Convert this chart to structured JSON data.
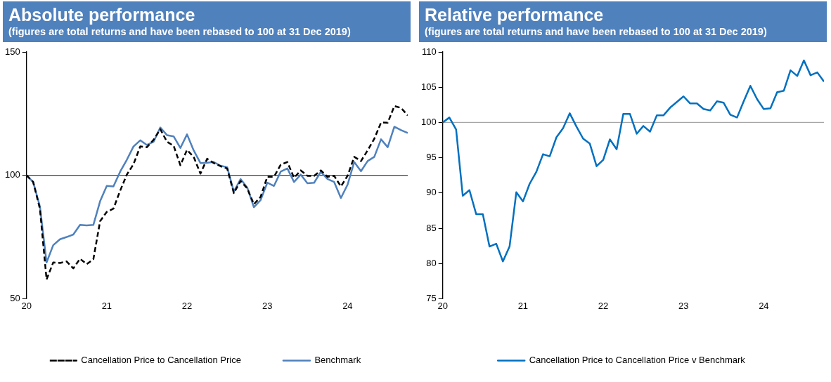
{
  "chart_data": [
    {
      "type": "line",
      "title": "Absolute performance",
      "subtitle": "(figures are total returns and have been rebased to 100 at 31 Dec 2019)",
      "x": [
        20,
        20.083,
        20.167,
        20.25,
        20.333,
        20.417,
        20.5,
        20.583,
        20.667,
        20.75,
        20.833,
        20.917,
        21,
        21.083,
        21.167,
        21.25,
        21.333,
        21.417,
        21.5,
        21.583,
        21.667,
        21.75,
        21.833,
        21.917,
        22,
        22.083,
        22.167,
        22.25,
        22.333,
        22.417,
        22.5,
        22.583,
        22.667,
        22.75,
        22.833,
        22.917,
        23,
        23.083,
        23.167,
        23.25,
        23.333,
        23.417,
        23.5,
        23.583,
        23.667,
        23.75,
        23.833,
        23.917,
        24,
        24.083,
        24.167,
        24.25,
        24.333,
        24.417,
        24.5,
        24.583,
        24.667,
        24.75
      ],
      "series": [
        {
          "name": "Cancellation Price to Cancellation Price",
          "color": "#000000",
          "line_style": "dashed",
          "values": [
            100,
            97.3,
            86.5,
            57.8,
            64.7,
            64.5,
            65.1,
            62.3,
            66.2,
            64,
            66,
            81.4,
            85.2,
            86.5,
            93.8,
            100.3,
            104.5,
            111.7,
            111.4,
            114.4,
            118.7,
            113.6,
            112,
            104.1,
            110.3,
            107.5,
            100.7,
            106.7,
            105,
            103.7,
            102.8,
            92.8,
            97.7,
            94.7,
            88.3,
            91.3,
            99.4,
            99.4,
            104.3,
            105.4,
            99,
            102,
            99.8,
            99.8,
            102,
            99.4,
            99.8,
            95.5,
            99.8,
            107.5,
            105.8,
            110.1,
            114.8,
            121.4,
            121.3,
            128.1,
            127.3,
            124.3
          ]
        },
        {
          "name": "Benchmark",
          "color": "#4f81bd",
          "line_style": "solid",
          "values": [
            100,
            97.3,
            87.4,
            64.7,
            71.7,
            74.1,
            75,
            76,
            79.9,
            79.7,
            79.9,
            89.5,
            95.7,
            95.5,
            101.5,
            106.3,
            111.7,
            114.2,
            112.3,
            113.6,
            119.4,
            116.3,
            115.8,
            111.1,
            116.6,
            110.1,
            105,
            105.1,
            105.4,
            103.9,
            103.3,
            93.4,
            98.5,
            95.1,
            87.1,
            90,
            97,
            95.7,
            101.5,
            102.8,
            97.3,
            100.3,
            96.8,
            97,
            101.4,
            98.5,
            97.3,
            90.8,
            96.2,
            105.4,
            101.7,
            105.8,
            107.5,
            114.6,
            111.4,
            119.7,
            118.3,
            117.2
          ]
        }
      ],
      "xlim": [
        20,
        24.75
      ],
      "xticks": [
        20,
        21,
        22,
        23,
        24
      ],
      "ylim": [
        50,
        150
      ],
      "yticks": [
        50,
        100,
        150
      ],
      "ref_lines": [
        {
          "axis": "y",
          "value": 100,
          "color": "#404040"
        }
      ],
      "legend": "bottom",
      "marker": "none"
    },
    {
      "type": "line",
      "title": "Relative performance",
      "subtitle": "(figures are total returns and have been rebased to 100 at 31 Dec 2019)",
      "x": [
        20,
        20.083,
        20.167,
        20.25,
        20.333,
        20.417,
        20.5,
        20.583,
        20.667,
        20.75,
        20.833,
        20.917,
        21,
        21.083,
        21.167,
        21.25,
        21.333,
        21.417,
        21.5,
        21.583,
        21.667,
        21.75,
        21.833,
        21.917,
        22,
        22.083,
        22.167,
        22.25,
        22.333,
        22.417,
        22.5,
        22.583,
        22.667,
        22.75,
        22.833,
        22.917,
        23,
        23.083,
        23.167,
        23.25,
        23.333,
        23.417,
        23.5,
        23.583,
        23.667,
        23.75,
        23.833,
        23.917,
        24,
        24.083,
        24.167,
        24.25,
        24.333,
        24.417,
        24.5,
        24.583,
        24.667,
        24.75
      ],
      "series": [
        {
          "name": "Cancellation Price to Cancellation Price v Benchmark",
          "color": "#0070c0",
          "line_style": "solid",
          "values": [
            100,
            100.7,
            99,
            89.6,
            90.4,
            87,
            87,
            82.4,
            82.8,
            80.3,
            82.4,
            90.1,
            88.8,
            91.3,
            93,
            95.5,
            95.2,
            97.9,
            99.2,
            101.3,
            99.4,
            97.7,
            97,
            93.8,
            94.7,
            97.6,
            96.2,
            101.2,
            101.2,
            98.4,
            99.5,
            98.7,
            101,
            101,
            102.1,
            102.9,
            103.7,
            102.7,
            102.7,
            101.9,
            101.7,
            103,
            102.8,
            101.1,
            100.7,
            103,
            105.2,
            103.3,
            101.9,
            102,
            104.3,
            104.5,
            107.4,
            106.6,
            108.8,
            106.7,
            107.1,
            105.8
          ]
        }
      ],
      "xlim": [
        20,
        24.75
      ],
      "xticks": [
        20,
        21,
        22,
        23,
        24
      ],
      "ylim": [
        75,
        110
      ],
      "yticks": [
        75,
        80,
        85,
        90,
        95,
        100,
        105,
        110
      ],
      "ref_lines": [
        {
          "axis": "y",
          "value": 100,
          "color": "#a6a6a6"
        }
      ],
      "legend": "bottom",
      "marker": "none"
    }
  ]
}
